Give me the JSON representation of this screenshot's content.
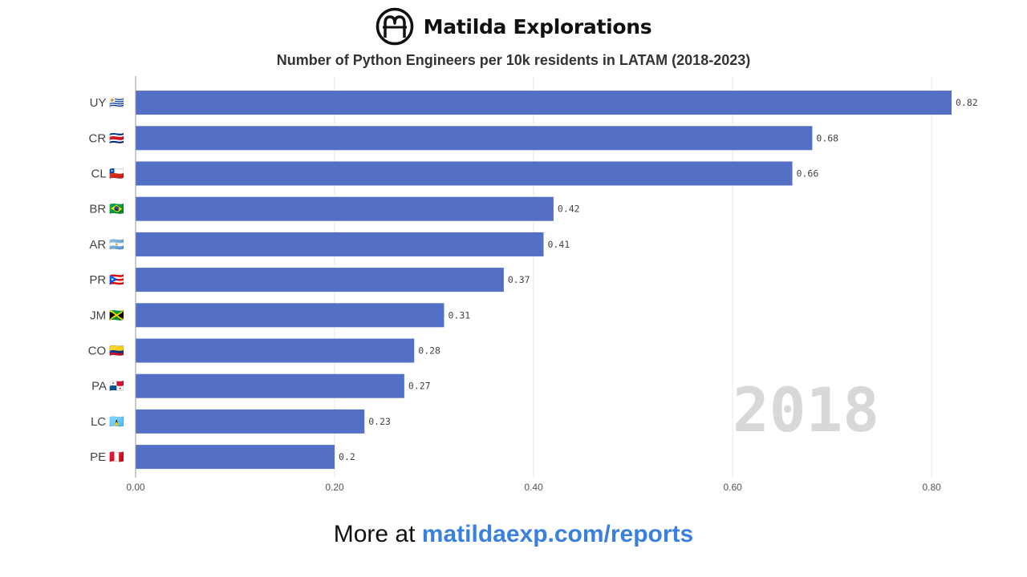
{
  "brand": {
    "name": "Matilda Explorations"
  },
  "chart_data": {
    "type": "bar",
    "orientation": "horizontal",
    "title": "Number of Python Engineers per 10k residents in LATAM (2018-2023)",
    "categories": [
      "UY 🇺🇾",
      "CR 🇨🇷",
      "CL 🇨🇱",
      "BR 🇧🇷",
      "AR 🇦🇷",
      "PR 🇵🇷",
      "JM 🇯🇲",
      "CO 🇨🇴",
      "PA 🇵🇦",
      "LC 🇱🇨",
      "PE 🇵🇪"
    ],
    "codes": [
      "UY",
      "CR",
      "CL",
      "BR",
      "AR",
      "PR",
      "JM",
      "CO",
      "PA",
      "LC",
      "PE"
    ],
    "values": [
      0.82,
      0.68,
      0.66,
      0.42,
      0.41,
      0.37,
      0.31,
      0.28,
      0.27,
      0.23,
      0.2
    ],
    "value_labels": [
      "0.82",
      "0.68",
      "0.66",
      "0.42",
      "0.41",
      "0.37",
      "0.31",
      "0.28",
      "0.27",
      "0.23",
      "0.2"
    ],
    "xlim": [
      0,
      0.82
    ],
    "xticks": [
      "0.00",
      "0.20",
      "0.40",
      "0.60",
      "0.80"
    ],
    "xtick_values": [
      0,
      0.2,
      0.4,
      0.6,
      0.8
    ],
    "bar_color": "#5470c6",
    "grid": true,
    "year": "2018"
  },
  "footer": {
    "prefix": "More at ",
    "link": "matildaexp.com/reports"
  }
}
